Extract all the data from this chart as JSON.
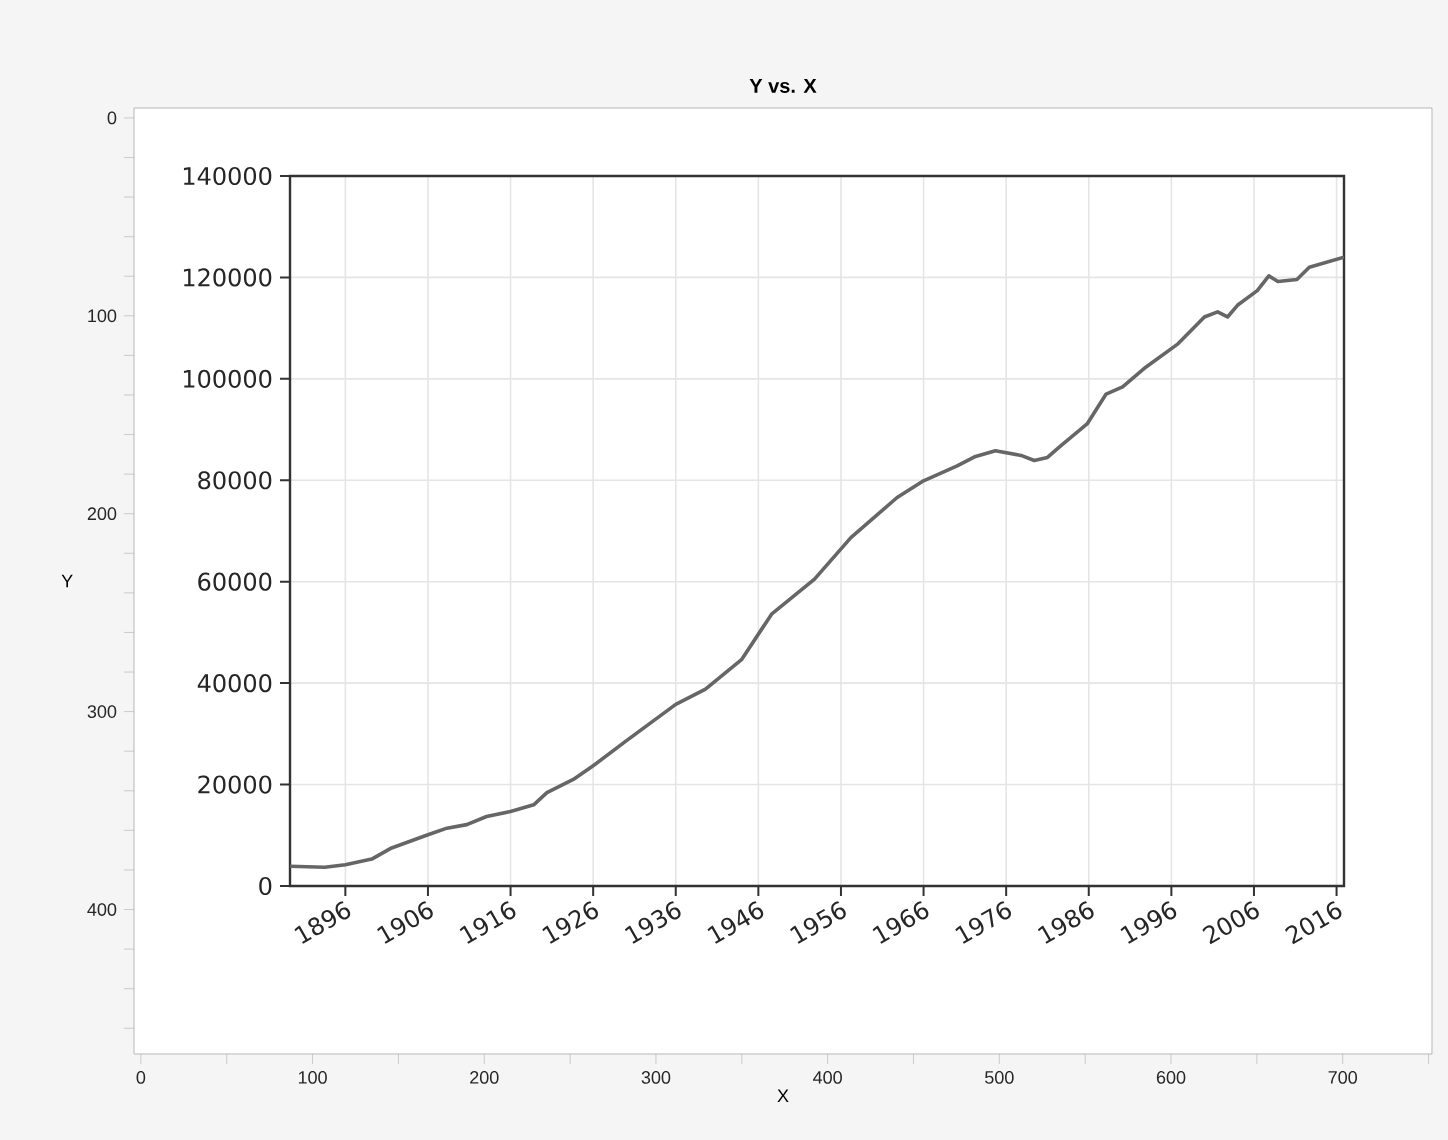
{
  "chart_data": [
    {
      "type": "scatter",
      "title": "Y vs. X",
      "xlabel": "X",
      "ylabel": "Y",
      "xlim": [
        -4,
        752
      ],
      "ylim": [
        473,
        -5
      ],
      "xticks": [
        0,
        {
          "value": 50,
          "label": null
        },
        100,
        {
          "value": 150,
          "label": null
        },
        200,
        {
          "value": 250,
          "label": null
        },
        300,
        {
          "value": 350,
          "label": null
        },
        400,
        {
          "value": 450,
          "label": null
        },
        500,
        {
          "value": 550,
          "label": null
        },
        600,
        {
          "value": 650,
          "label": null
        },
        700,
        {
          "value": 750,
          "label": null
        }
      ],
      "yticks": [
        0,
        {
          "value": 20,
          "label": null
        },
        {
          "value": 40,
          "label": null
        },
        {
          "value": 60,
          "label": null
        },
        {
          "value": 80,
          "label": null
        },
        100,
        {
          "value": 120,
          "label": null
        },
        {
          "value": 140,
          "label": null
        },
        {
          "value": 160,
          "label": null
        },
        {
          "value": 180,
          "label": null
        },
        200,
        {
          "value": 220,
          "label": null
        },
        {
          "value": 240,
          "label": null
        },
        {
          "value": 260,
          "label": null
        },
        {
          "value": 280,
          "label": null
        },
        300,
        {
          "value": 320,
          "label": null
        },
        {
          "value": 340,
          "label": null
        },
        {
          "value": 360,
          "label": null
        },
        {
          "value": 380,
          "label": null
        },
        400,
        {
          "value": 420,
          "label": null
        },
        {
          "value": 440,
          "label": null
        },
        {
          "value": 460,
          "label": null
        }
      ]
    },
    {
      "type": "line",
      "xlim": [
        1889.3,
        2016.9
      ],
      "ylim": [
        0,
        140000
      ],
      "xticks": [
        1896,
        1906,
        1916,
        1926,
        1936,
        1946,
        1956,
        1966,
        1976,
        1986,
        1996,
        2006,
        2016
      ],
      "yticks": [
        0,
        20000,
        40000,
        60000,
        80000,
        100000,
        120000,
        140000
      ],
      "grid": true,
      "series": [
        {
          "color": "#666666",
          "x": [
            1889.3,
            1893.5,
            1896,
            1899.2,
            1901.6,
            1906,
            1908.3,
            1910.7,
            1913.1,
            1916,
            1918.8,
            1920.4,
            1923.6,
            1926,
            1930,
            1936,
            1939.6,
            1944,
            1947.6,
            1952.8,
            1957.2,
            1962.8,
            1966,
            1970,
            1972.3,
            1974.7,
            1977.8,
            1979.4,
            1981,
            1982.6,
            1985.8,
            1988.1,
            1990.1,
            1992.9,
            1996.8,
            2000,
            2001.6,
            2002.8,
            2004,
            2006.4,
            2007.8,
            2008.9,
            2011.2,
            2012.7,
            2016.9
          ],
          "values": [
            3900,
            3700,
            4200,
            5300,
            7500,
            10100,
            11400,
            12100,
            13700,
            14700,
            16000,
            18400,
            21000,
            23700,
            28600,
            35800,
            38800,
            44700,
            53600,
            60500,
            68700,
            76600,
            79900,
            82800,
            84700,
            85800,
            84900,
            83900,
            84500,
            86800,
            91100,
            97000,
            98400,
            102300,
            106900,
            112200,
            113200,
            112200,
            114500,
            117400,
            120300,
            119200,
            119600,
            122000,
            124000
          ]
        }
      ]
    }
  ]
}
